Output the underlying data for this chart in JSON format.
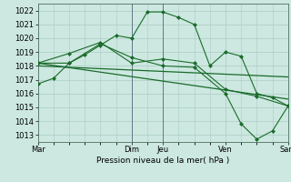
{
  "background_color": "#cce8e0",
  "grid_color": "#aaccc4",
  "line_color": "#1a6b2a",
  "xtick_labels": [
    "Mar",
    "Dim",
    "Jeu",
    "Ven",
    "Sam"
  ],
  "xtick_positions": [
    0,
    6,
    8,
    12,
    16
  ],
  "xlabel": "Pression niveau de la mer( hPa )",
  "ylim": [
    1012.5,
    1022.5
  ],
  "ytick_values": [
    1013,
    1014,
    1015,
    1016,
    1017,
    1018,
    1019,
    1020,
    1021,
    1022
  ],
  "series1_x": [
    0,
    1,
    2,
    3,
    4,
    5,
    6,
    7,
    8,
    9,
    10,
    11,
    12,
    13,
    14,
    15,
    16
  ],
  "series1_y": [
    1016.7,
    1017.1,
    1018.2,
    1018.8,
    1019.5,
    1020.2,
    1020.0,
    1021.9,
    1021.9,
    1021.5,
    1021.0,
    1018.0,
    1019.0,
    1018.7,
    1016.0,
    1015.7,
    1015.1
  ],
  "series2_x": [
    0,
    2,
    4,
    6,
    8,
    10,
    12,
    14,
    16
  ],
  "series2_y": [
    1018.2,
    1018.9,
    1019.7,
    1018.2,
    1018.5,
    1018.2,
    1016.3,
    1015.8,
    1015.1
  ],
  "series3_x": [
    0,
    16
  ],
  "series3_y": [
    1018.2,
    1015.6
  ],
  "series4_x": [
    0,
    16
  ],
  "series4_y": [
    1018.0,
    1017.2
  ],
  "series5_x": [
    0,
    2,
    4,
    6,
    8,
    10,
    12,
    13,
    14,
    15,
    16
  ],
  "series5_y": [
    1018.2,
    1018.2,
    1019.6,
    1018.6,
    1018.0,
    1017.9,
    1016.0,
    1013.8,
    1012.7,
    1013.3,
    1015.1
  ],
  "vline_positions": [
    6,
    8
  ],
  "axis_fontsize": 6.5,
  "tick_fontsize": 6.0
}
